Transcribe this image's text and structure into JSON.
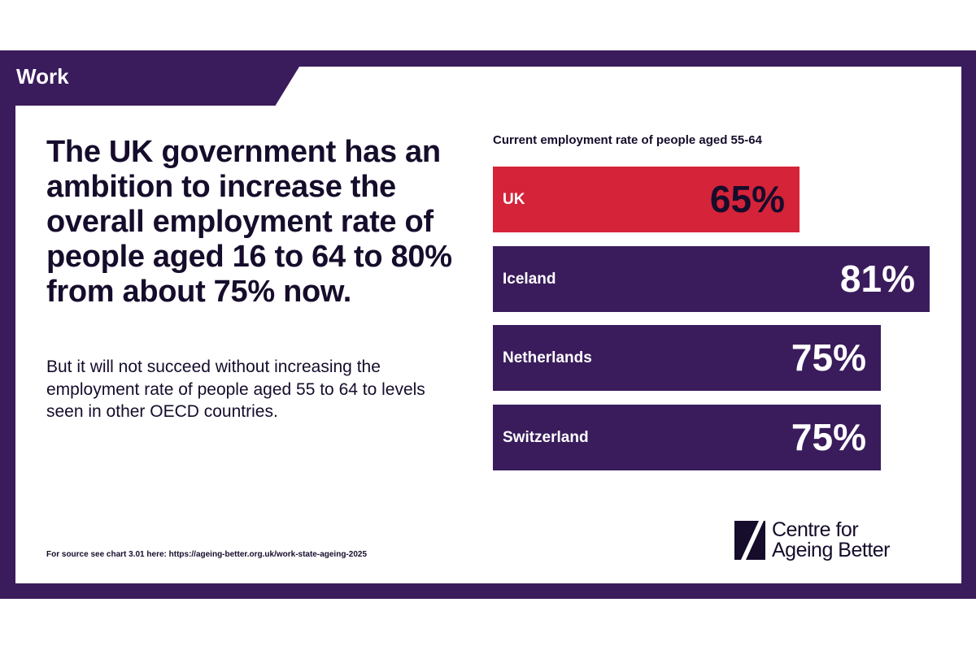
{
  "section_tab": "Work",
  "headline": "The UK government has an ambition to increase the overall employment rate of people aged 16 to 64 to 80% from about 75% now.",
  "body": "But it will not succeed without increasing the employment rate of people aged 55 to 64 to levels seen in other OECD countries.",
  "source": "For source see chart 3.01 here: https://ageing-better.org.uk/work-state-ageing-2025",
  "logo": {
    "line1": "Centre for",
    "line2": "Ageing Better",
    "icon": "centre-for-ageing-better-logo-mark"
  },
  "colors": {
    "purple": "#3a1c5c",
    "red": "#d52339",
    "dark": "#160c2b"
  },
  "chart_data": {
    "type": "bar",
    "orientation": "horizontal",
    "title": "Current employment rate of people aged 55-64",
    "categories": [
      "UK",
      "Iceland",
      "Netherlands",
      "Switzerland"
    ],
    "values": [
      65,
      81,
      75,
      75
    ],
    "value_labels": [
      "65%",
      "81%",
      "75%",
      "75%"
    ],
    "highlight": "UK",
    "grid": false,
    "axes_shown": false
  }
}
